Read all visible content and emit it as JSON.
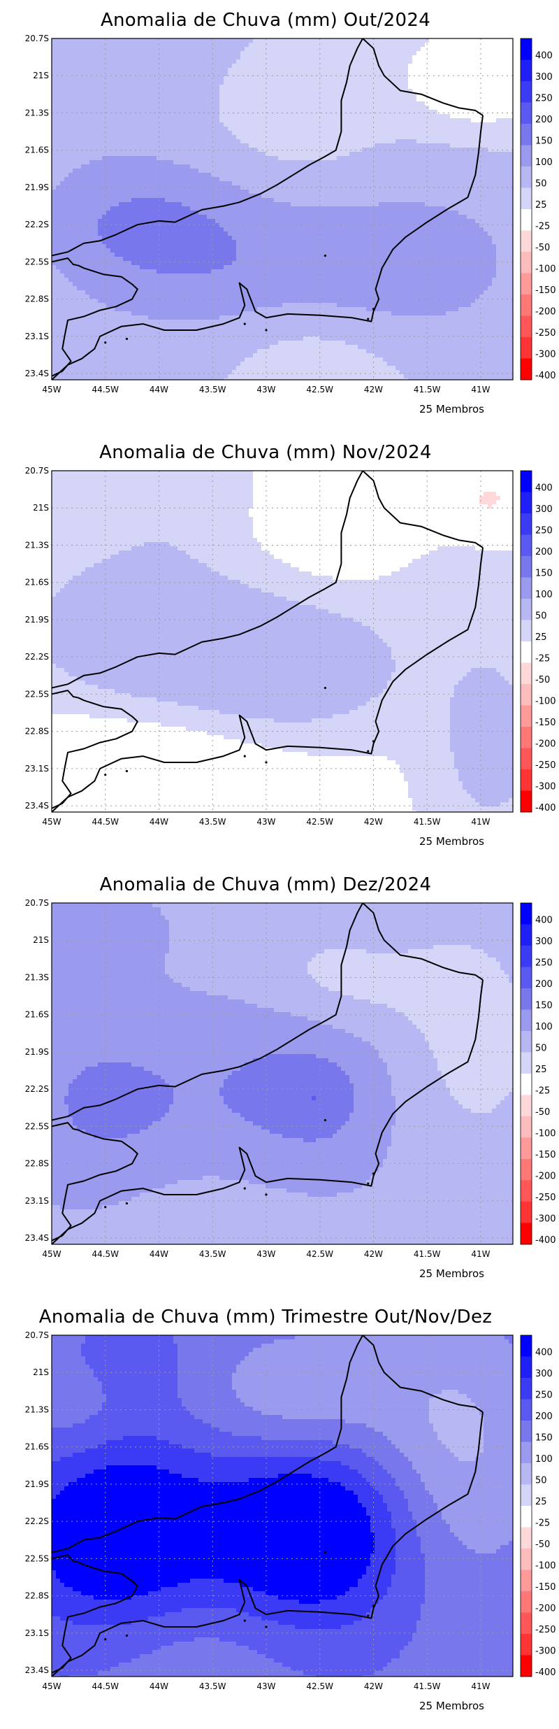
{
  "figure": {
    "panels": [
      {
        "title": "Anomalia de Chuva (mm) Out/2024",
        "members": "25 Membros",
        "field": {
          "base": 50,
          "blobs": [
            [
              -44.8,
              21.2,
              1.1,
              0.5,
              30
            ],
            [
              -44.3,
              22.2,
              1.0,
              0.55,
              90
            ],
            [
              -43.5,
              22.6,
              1.0,
              0.8,
              60
            ],
            [
              -42.3,
              22.5,
              1.0,
              0.5,
              50
            ],
            [
              -41.4,
              22.5,
              1.0,
              0.7,
              60
            ],
            [
              -41.0,
              21.0,
              0.75,
              0.45,
              -55
            ],
            [
              -42.8,
              21.4,
              0.75,
              0.4,
              -30
            ],
            [
              -42.7,
              23.3,
              0.9,
              0.5,
              -40
            ],
            [
              -44.9,
              23.3,
              0.6,
              0.5,
              30
            ]
          ]
        }
      },
      {
        "title": "Anomalia de Chuva (mm) Nov/2024",
        "members": "25 Membros",
        "field": {
          "base": 20,
          "blobs": [
            [
              -44.1,
              22.0,
              1.3,
              0.75,
              55
            ],
            [
              -42.7,
              22.3,
              1.0,
              0.5,
              55
            ],
            [
              -41.2,
              21.4,
              0.8,
              0.6,
              25
            ],
            [
              -40.9,
              22.9,
              0.55,
              0.8,
              45
            ],
            [
              -44.3,
              23.1,
              1.3,
              0.5,
              -35
            ],
            [
              -42.2,
              21.0,
              1.3,
              0.5,
              -40
            ],
            [
              -40.9,
              20.95,
              0.35,
              0.3,
              -45
            ],
            [
              -43.6,
              20.9,
              1.0,
              0.45,
              30
            ]
          ]
        }
      },
      {
        "title": "Anomalia de Chuva (mm) Dez/2024",
        "members": "25 Membros",
        "field": {
          "base": 85,
          "blobs": [
            [
              -44.5,
              22.3,
              0.95,
              0.75,
              75
            ],
            [
              -42.7,
              22.2,
              0.95,
              0.75,
              80
            ],
            [
              -42.5,
              22.3,
              0.3,
              0.25,
              40
            ],
            [
              -42.3,
              21.3,
              0.8,
              0.45,
              -60
            ],
            [
              -41.1,
              21.8,
              0.75,
              1.0,
              -55
            ],
            [
              -43.5,
              23.3,
              0.9,
              0.5,
              -25
            ],
            [
              -44.6,
              20.9,
              0.7,
              0.35,
              35
            ],
            [
              -42.0,
              20.9,
              0.5,
              0.3,
              15
            ]
          ]
        }
      },
      {
        "title": "Anomalia de Chuva (mm) Trimestre Out/Nov/Dez",
        "members": "25 Membros",
        "field": {
          "base": 190,
          "blobs": [
            [
              -44.4,
              22.3,
              0.95,
              0.8,
              190
            ],
            [
              -42.6,
              22.3,
              0.95,
              0.75,
              200
            ],
            [
              -42.7,
              21.2,
              0.95,
              0.55,
              -90
            ],
            [
              -41.2,
              21.6,
              0.8,
              1.1,
              -100
            ],
            [
              -43.7,
              23.2,
              1.0,
              0.6,
              -40
            ],
            [
              -44.8,
              21.2,
              0.5,
              0.55,
              -50
            ],
            [
              -44.5,
              20.9,
              0.8,
              0.35,
              40
            ]
          ]
        }
      }
    ],
    "axes": {
      "x_ticks": [
        "45W",
        "44.5W",
        "44W",
        "43.5W",
        "43W",
        "42.5W",
        "42W",
        "41.5W",
        "41W"
      ],
      "x_values": [
        -45,
        -44.5,
        -44,
        -43.5,
        -43,
        -42.5,
        -42,
        -41.5,
        -41
      ],
      "y_ticks": [
        "20.7S",
        "21S",
        "21.3S",
        "21.6S",
        "21.9S",
        "22.2S",
        "22.5S",
        "22.8S",
        "23.1S",
        "23.4S"
      ],
      "y_values": [
        20.7,
        21.0,
        21.3,
        21.6,
        21.9,
        22.2,
        22.5,
        22.8,
        23.1,
        23.4
      ],
      "x_range": [
        -45.0,
        -40.7
      ],
      "y_range": [
        20.7,
        23.45
      ]
    },
    "colorbar": {
      "labels": [
        "400",
        "300",
        "250",
        "200",
        "150",
        "100",
        "50",
        "25",
        "-25",
        "-50",
        "-100",
        "-150",
        "-200",
        "-250",
        "-300",
        "-400"
      ],
      "levels": [
        400,
        300,
        250,
        200,
        150,
        100,
        50,
        25,
        -25,
        -50,
        -100,
        -150,
        -200,
        -250,
        -300,
        -400
      ],
      "colors": [
        "#0000ff",
        "#1f1ff8",
        "#3b3bf5",
        "#5a5af0",
        "#7878ec",
        "#9a9aee",
        "#b7b7f3",
        "#d5d5f8",
        "#ffffff",
        "#ffd9d9",
        "#ffbcbc",
        "#ff9a9a",
        "#ff7878",
        "#ff5757",
        "#ff3434",
        "#ff0000"
      ]
    },
    "coastline": [
      [
        -45.0,
        22.45
      ],
      [
        -44.85,
        22.42
      ],
      [
        -44.7,
        22.35
      ],
      [
        -44.55,
        22.33
      ],
      [
        -44.4,
        22.28
      ],
      [
        -44.2,
        22.2
      ],
      [
        -44.0,
        22.17
      ],
      [
        -43.85,
        22.18
      ],
      [
        -43.7,
        22.12
      ],
      [
        -43.6,
        22.08
      ],
      [
        -43.4,
        22.05
      ],
      [
        -43.25,
        22.02
      ],
      [
        -43.05,
        21.95
      ],
      [
        -42.9,
        21.88
      ],
      [
        -42.75,
        21.8
      ],
      [
        -42.6,
        21.72
      ],
      [
        -42.45,
        21.65
      ],
      [
        -42.35,
        21.6
      ],
      [
        -42.3,
        21.45
      ],
      [
        -42.3,
        21.2
      ],
      [
        -42.25,
        21.05
      ],
      [
        -42.22,
        20.92
      ],
      [
        -42.15,
        20.78
      ],
      [
        -42.1,
        20.7
      ]
    ],
    "border_ne": [
      [
        -42.1,
        20.7
      ],
      [
        -42.0,
        20.78
      ],
      [
        -41.95,
        20.92
      ],
      [
        -41.9,
        21.0
      ],
      [
        -41.75,
        21.12
      ],
      [
        -41.55,
        21.15
      ],
      [
        -41.35,
        21.22
      ],
      [
        -41.2,
        21.26
      ],
      [
        -41.05,
        21.28
      ],
      [
        -40.98,
        21.32
      ]
    ],
    "border_w": [
      [
        -45.0,
        22.5
      ],
      [
        -44.85,
        22.47
      ],
      [
        -44.8,
        22.52
      ],
      [
        -44.75,
        22.53
      ],
      [
        -44.7,
        22.55
      ],
      [
        -44.52,
        22.6
      ],
      [
        -44.35,
        22.62
      ],
      [
        -44.25,
        22.68
      ],
      [
        -44.2,
        22.72
      ],
      [
        -44.25,
        22.8
      ],
      [
        -44.4,
        22.86
      ],
      [
        -44.55,
        22.89
      ],
      [
        -44.7,
        22.94
      ],
      [
        -44.85,
        22.97
      ],
      [
        -44.88,
        23.1
      ],
      [
        -44.9,
        23.2
      ],
      [
        -44.82,
        23.3
      ],
      [
        -44.9,
        23.38
      ],
      [
        -45.0,
        23.42
      ]
    ],
    "sea_coast": [
      [
        -40.98,
        21.32
      ],
      [
        -41.0,
        21.45
      ],
      [
        -41.02,
        21.62
      ],
      [
        -41.05,
        21.8
      ],
      [
        -41.12,
        21.98
      ],
      [
        -41.3,
        22.07
      ],
      [
        -41.5,
        22.18
      ],
      [
        -41.7,
        22.3
      ],
      [
        -41.82,
        22.4
      ],
      [
        -41.92,
        22.55
      ],
      [
        -41.98,
        22.72
      ],
      [
        -41.95,
        22.8
      ],
      [
        -42.0,
        22.9
      ],
      [
        -42.02,
        22.98
      ],
      [
        -42.2,
        22.95
      ],
      [
        -42.5,
        22.93
      ],
      [
        -42.8,
        22.92
      ],
      [
        -43.0,
        22.95
      ],
      [
        -43.1,
        22.9
      ],
      [
        -43.18,
        22.72
      ],
      [
        -43.25,
        22.67
      ],
      [
        -43.2,
        22.85
      ],
      [
        -43.25,
        22.95
      ],
      [
        -43.4,
        23.0
      ],
      [
        -43.65,
        23.05
      ],
      [
        -43.95,
        23.05
      ],
      [
        -44.15,
        23.0
      ],
      [
        -44.35,
        23.02
      ],
      [
        -44.55,
        23.1
      ],
      [
        -44.6,
        23.2
      ],
      [
        -44.72,
        23.28
      ],
      [
        -44.85,
        23.33
      ],
      [
        -45.0,
        23.45
      ]
    ]
  }
}
